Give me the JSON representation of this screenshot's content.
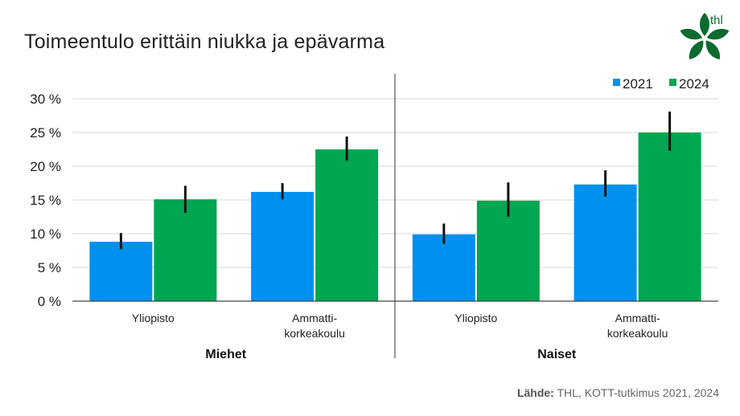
{
  "chart_data": {
    "type": "bar",
    "title": "Toimeentulo erittäin niukka ja epävarma",
    "groups": [
      {
        "name": "Miehet",
        "categories": [
          "Yliopisto",
          "Ammatti-\nkorkeakoulu"
        ]
      },
      {
        "name": "Naiset",
        "categories": [
          "Yliopisto",
          "Ammatti-\nkorkeakoulu"
        ]
      }
    ],
    "series": [
      {
        "name": "2021",
        "color": "#0091f0",
        "values": [
          8.8,
          16.2,
          9.9,
          17.3
        ],
        "error_low": [
          7.7,
          15.1,
          8.5,
          15.5
        ],
        "error_high": [
          10.1,
          17.5,
          11.5,
          19.4
        ]
      },
      {
        "name": "2024",
        "color": "#00a651",
        "values": [
          15.1,
          22.5,
          14.9,
          25.0
        ],
        "error_low": [
          13.1,
          20.8,
          12.5,
          22.3
        ],
        "error_high": [
          17.1,
          24.4,
          17.6,
          28.1
        ]
      }
    ],
    "yticks": [
      "0 %",
      "5 %",
      "10 %",
      "15 %",
      "20 %",
      "25 %",
      "30 %"
    ],
    "ylim": [
      0,
      30
    ],
    "grid": true,
    "legend": "top-right"
  },
  "source": {
    "label": "Lähde:",
    "text": " THL, KOTT-tutkimus 2021, 2024"
  },
  "logo": {
    "text": "thl",
    "color": "#0b6b2e"
  }
}
